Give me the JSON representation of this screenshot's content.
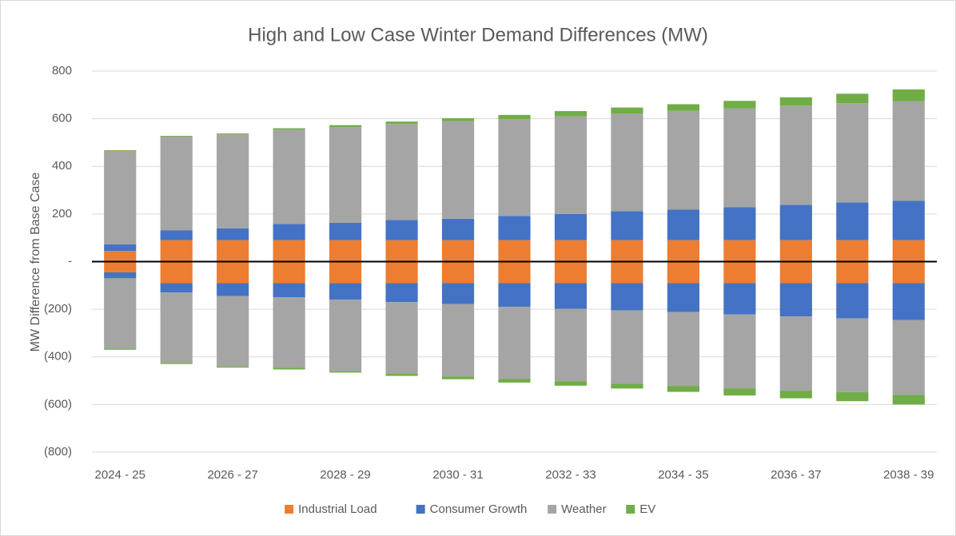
{
  "chart_data": {
    "type": "bar",
    "stacked": true,
    "title": "High and Low Case Winter Demand Differences (MW)",
    "y_label": "MW Difference from Base Case",
    "categories": [
      "2024 - 25",
      null,
      "2026 - 27",
      null,
      "2028 - 29",
      null,
      "2030 - 31",
      null,
      "2032 - 33",
      null,
      "2034 - 35",
      null,
      "2036 - 37",
      null,
      "2038 - 39"
    ],
    "series": [
      {
        "name": "Industrial Load",
        "color": "#ED7D31",
        "values": [
          45,
          90,
          90,
          90,
          90,
          90,
          90,
          90,
          90,
          90,
          90,
          90,
          90,
          90,
          90
        ],
        "low_values": [
          -45,
          -90,
          -90,
          -90,
          -90,
          -90,
          -90,
          -90,
          -90,
          -90,
          -90,
          -90,
          -90,
          -90,
          -90
        ]
      },
      {
        "name": "Consumer Growth",
        "color": "#4472C4",
        "values": [
          27,
          42,
          50,
          68,
          73,
          85,
          90,
          102,
          110,
          122,
          128,
          138,
          148,
          158,
          165
        ],
        "low_values": [
          -25,
          -40,
          -55,
          -60,
          -70,
          -80,
          -88,
          -100,
          -108,
          -115,
          -122,
          -132,
          -140,
          -148,
          -155
        ]
      },
      {
        "name": "Weather",
        "color": "#A5A5A5",
        "values": [
          393,
          393,
          395,
          397,
          402,
          403,
          410,
          406,
          410,
          410,
          415,
          415,
          417,
          417,
          418
        ],
        "low_values": [
          -295,
          -295,
          -295,
          -295,
          -300,
          -300,
          -304,
          -303,
          -305,
          -308,
          -310,
          -310,
          -312,
          -310,
          -315
        ]
      },
      {
        "name": "EV",
        "color": "#70AD47",
        "values": [
          3,
          3,
          3,
          5,
          8,
          10,
          12,
          18,
          22,
          25,
          28,
          32,
          35,
          40,
          50
        ],
        "low_values": [
          -5,
          -5,
          -5,
          -8,
          -6,
          -10,
          -12,
          -15,
          -18,
          -20,
          -25,
          -30,
          -32,
          -38,
          -40
        ]
      }
    ],
    "ylim": [
      -800,
      800
    ],
    "yticks": [
      {
        "value": -800,
        "label": "(800)"
      },
      {
        "value": -600,
        "label": "(600)"
      },
      {
        "value": -400,
        "label": "(400)"
      },
      {
        "value": -200,
        "label": "(200)"
      },
      {
        "value": 0,
        "label": "-"
      },
      200,
      400,
      600,
      800
    ],
    "grid": true,
    "legend": "bottom"
  }
}
